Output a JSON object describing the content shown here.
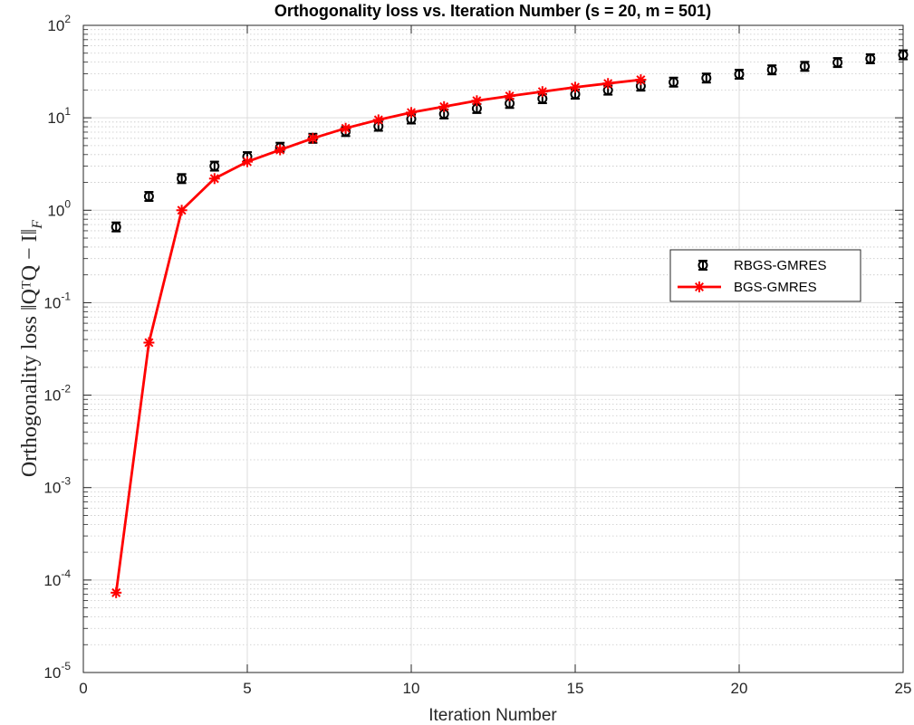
{
  "chart_data": {
    "type": "line",
    "title": "Orthogonality loss vs. Iteration Number (s = 20, m = 501)",
    "xlabel": "Iteration Number",
    "ylabel": "Orthogonality loss ‖QᵀQ − I‖",
    "ylabel_subscript": "F",
    "xscale": "linear",
    "yscale": "log",
    "xlim": [
      0,
      25
    ],
    "ylim": [
      1e-05,
      100
    ],
    "grid": true,
    "minor_grid": true,
    "legend_position": "right",
    "x_ticks": [
      "0",
      "5",
      "10",
      "15",
      "20",
      "25"
    ],
    "y_ticks": [
      {
        "base": "10",
        "exp": "-5"
      },
      {
        "base": "10",
        "exp": "-4"
      },
      {
        "base": "10",
        "exp": "-3"
      },
      {
        "base": "10",
        "exp": "-2"
      },
      {
        "base": "10",
        "exp": "-1"
      },
      {
        "base": "10",
        "exp": "0"
      },
      {
        "base": "10",
        "exp": "1"
      },
      {
        "base": "10",
        "exp": "2"
      }
    ],
    "series": [
      {
        "name": "RBGS-GMRES",
        "color": "#000000",
        "marker": "circle-errorbar",
        "line": false,
        "x": [
          1,
          2,
          3,
          4,
          5,
          6,
          7,
          8,
          9,
          10,
          11,
          12,
          13,
          14,
          15,
          16,
          17,
          18,
          19,
          20,
          21,
          22,
          23,
          24,
          25
        ],
        "y": [
          0.66,
          1.41,
          2.2,
          3.0,
          3.8,
          4.8,
          6.0,
          7.1,
          8.1,
          9.7,
          11.0,
          12.6,
          14.3,
          16.1,
          18.0,
          19.9,
          22.0,
          24.3,
          26.9,
          29.6,
          33.0,
          36.0,
          39.6,
          43.5,
          48.0
        ]
      },
      {
        "name": "BGS-GMRES",
        "color": "#ff0000",
        "marker": "asterisk",
        "line": true,
        "x": [
          1,
          2,
          3,
          4,
          5,
          6,
          7,
          8,
          9,
          10,
          11,
          12,
          13,
          14,
          15,
          16,
          17
        ],
        "y": [
          7.3e-05,
          0.037,
          1.0,
          2.2,
          3.35,
          4.5,
          6.0,
          7.7,
          9.5,
          11.4,
          13.2,
          15.3,
          17.2,
          19.2,
          21.4,
          23.5,
          25.8
        ]
      }
    ]
  }
}
